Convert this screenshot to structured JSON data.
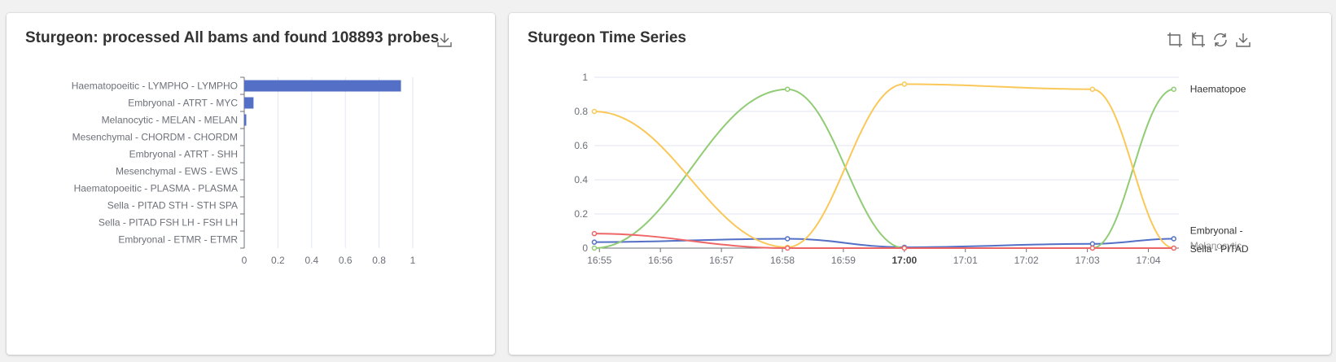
{
  "bar_panel": {
    "title": "Sturgeon: processed All bams and found 108893 probes",
    "toolbox": [
      "download-icon"
    ]
  },
  "line_panel": {
    "title": "Sturgeon Time Series",
    "toolbox": [
      "zoom-icon",
      "zoom-reset-icon",
      "restore-icon",
      "download-icon"
    ]
  },
  "colors": {
    "bar": "#5470c6",
    "axis": "#6e7079",
    "grid": "#e0e6f1",
    "series": [
      "#5470c6",
      "#91cc75",
      "#fac858",
      "#ee6666"
    ]
  },
  "chart_data": [
    {
      "type": "bar",
      "orientation": "horizontal",
      "title": "Sturgeon: processed All bams and found 108893 probes",
      "categories": [
        "Haematopoeitic - LYMPHO - LYMPHO",
        "Embryonal - ATRT - MYC",
        "Melanocytic - MELAN - MELAN",
        "Mesenchymal - CHORDM - CHORDM",
        "Embryonal - ATRT - SHH",
        "Mesenchymal - EWS - EWS",
        "Haematopoeitic - PLASMA - PLASMA",
        "Sella - PITAD STH - STH SPA",
        "Sella - PITAD FSH LH - FSH LH",
        "Embryonal - ETMR - ETMR"
      ],
      "values": [
        0.93,
        0.055,
        0.012,
        0.002,
        0.002,
        0.001,
        0.001,
        0.001,
        0.001,
        0.001
      ],
      "xlim": [
        0,
        1
      ],
      "xticks": [
        "0",
        "0.2",
        "0.4",
        "0.6",
        "0.8",
        "1"
      ],
      "grid": true
    },
    {
      "type": "line",
      "title": "Sturgeon Time Series",
      "xlim": [
        "16:54:55",
        "17:04:30"
      ],
      "xticks": [
        "16:55",
        "16:56",
        "16:57",
        "16:58",
        "16:59",
        "17:00",
        "17:01",
        "17:02",
        "17:03",
        "17:04"
      ],
      "xticks_bold": [
        "17:00"
      ],
      "ylim": [
        0,
        1
      ],
      "yticks": [
        "0",
        "0.2",
        "0.4",
        "0.6",
        "0.8",
        "1"
      ],
      "grid": true,
      "x": [
        "16:54:55",
        "16:58:05",
        "17:00:00",
        "17:03:05",
        "17:04:25"
      ],
      "series": [
        {
          "values": [
            0.035,
            0.055,
            0.005,
            0.025,
            0.055
          ]
        },
        {
          "values": [
            0.0,
            0.93,
            0.0,
            0.0,
            0.93
          ]
        },
        {
          "values": [
            0.8,
            0.005,
            0.96,
            0.93,
            0.0
          ]
        },
        {
          "values": [
            0.085,
            0.0,
            0.0,
            0.0,
            0.0
          ]
        }
      ],
      "end_labels": [
        "Haematopoe",
        "Embryonal -",
        "Sella - PITAD"
      ],
      "end_label_series": [
        1,
        0,
        3
      ],
      "end_label_overlap": "Melanocytic"
    }
  ]
}
